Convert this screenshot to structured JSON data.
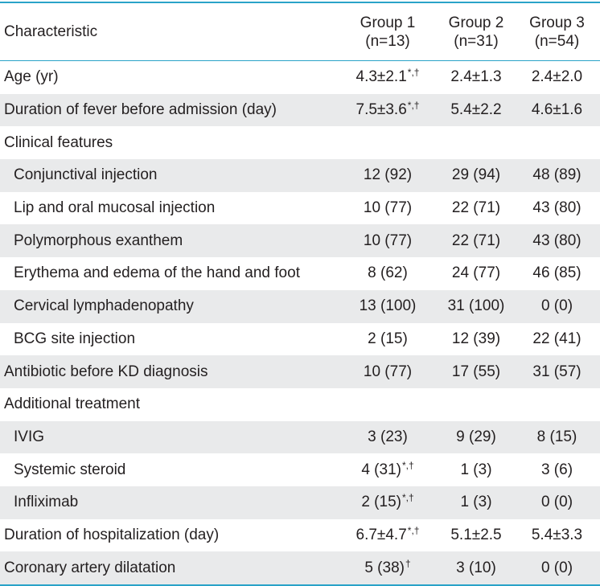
{
  "header": {
    "characteristic": "Characteristic",
    "groups": [
      {
        "name": "Group 1",
        "n": "(n=13)"
      },
      {
        "name": "Group 2",
        "n": "(n=31)"
      },
      {
        "name": "Group 3",
        "n": "(n=54)"
      }
    ]
  },
  "rows": [
    {
      "label": "Age (yr)",
      "indent": false,
      "shade": false,
      "g1": "4.3±2.1",
      "g1_sup": "*,†",
      "g2": "2.4±1.3",
      "g3": "2.4±2.0"
    },
    {
      "label": "Duration of fever before admission (day)",
      "indent": false,
      "shade": true,
      "g1": "7.5±3.6",
      "g1_sup": "*,†",
      "g2": "5.4±2.2",
      "g3": "4.6±1.6"
    },
    {
      "label": "Clinical features",
      "indent": false,
      "shade": false,
      "g1": "",
      "g1_sup": "",
      "g2": "",
      "g3": ""
    },
    {
      "label": "Conjunctival injection",
      "indent": true,
      "shade": true,
      "g1": "12 (92)",
      "g1_sup": "",
      "g2": "29 (94)",
      "g3": "48 (89)"
    },
    {
      "label": "Lip and oral mucosal injection",
      "indent": true,
      "shade": false,
      "g1": "10 (77)",
      "g1_sup": "",
      "g2": "22 (71)",
      "g3": "43 (80)"
    },
    {
      "label": "Polymorphous exanthem",
      "indent": true,
      "shade": true,
      "g1": "10 (77)",
      "g1_sup": "",
      "g2": "22 (71)",
      "g3": "43 (80)"
    },
    {
      "label": "Erythema and edema of the hand and foot",
      "indent": true,
      "shade": false,
      "g1": "8 (62)",
      "g1_sup": "",
      "g2": "24 (77)",
      "g3": "46 (85)"
    },
    {
      "label": "Cervical lymphadenopathy",
      "indent": true,
      "shade": true,
      "g1": "13 (100)",
      "g1_sup": "",
      "g2": "31 (100)",
      "g3": "0 (0)"
    },
    {
      "label": "BCG site injection",
      "indent": true,
      "shade": false,
      "g1": "2 (15)",
      "g1_sup": "",
      "g2": "12 (39)",
      "g3": "22 (41)"
    },
    {
      "label": "Antibiotic before KD diagnosis",
      "indent": false,
      "shade": true,
      "g1": "10 (77)",
      "g1_sup": "",
      "g2": "17 (55)",
      "g3": "31 (57)"
    },
    {
      "label": "Additional treatment",
      "indent": false,
      "shade": false,
      "g1": "",
      "g1_sup": "",
      "g2": "",
      "g3": ""
    },
    {
      "label": "IVIG",
      "indent": true,
      "shade": true,
      "g1": "3 (23)",
      "g1_sup": "",
      "g2": "9 (29)",
      "g3": "8 (15)"
    },
    {
      "label": "Systemic steroid",
      "indent": true,
      "shade": false,
      "g1": "4 (31)",
      "g1_sup": "*,†",
      "g2": "1 (3)",
      "g3": "3 (6)"
    },
    {
      "label": "Infliximab",
      "indent": true,
      "shade": true,
      "g1": "2 (15)",
      "g1_sup": "*,†",
      "g2": "1 (3)",
      "g3": "0 (0)"
    },
    {
      "label": "Duration of hospitalization (day)",
      "indent": false,
      "shade": false,
      "g1": "6.7±4.7",
      "g1_sup": "*,†",
      "g2": "5.1±2.5",
      "g3": "5.4±3.3"
    },
    {
      "label": "Coronary artery dilatation",
      "indent": false,
      "shade": true,
      "g1": "5 (38)",
      "g1_sup": "†",
      "g2": "3 (10)",
      "g3": "0 (0)"
    }
  ],
  "colors": {
    "rule": "#2aa3c8",
    "shade": "#e9eaeb",
    "text": "#231f20"
  }
}
